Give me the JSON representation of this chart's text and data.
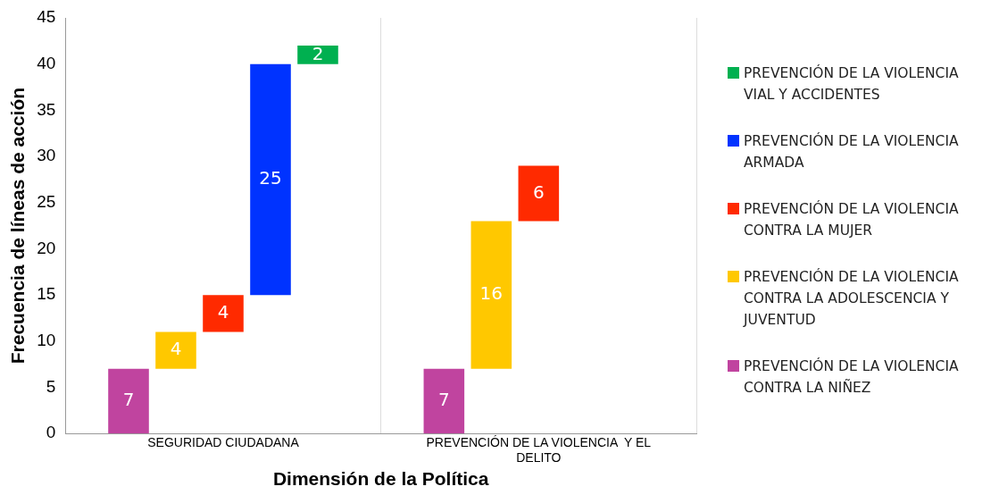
{
  "chart_data": {
    "type": "bar",
    "xlabel": "Dimensión de la Política",
    "ylabel": "Frecuencia de líneas de acción",
    "categories": [
      "SEGURIDAD CIUDADANA",
      "PREVENCIÓN DE LA VIOLENCIA  Y EL DELITO"
    ],
    "series": [
      {
        "name": "PREVENCIÓN DE LA VIOLENCIA CONTRA LA NIÑEZ",
        "color": "#c0449f",
        "values": [
          7,
          7
        ],
        "base": [
          0,
          0
        ]
      },
      {
        "name": "PREVENCIÓN DE LA VIOLENCIA CONTRA LA ADOLESCENCIA Y JUVENTUD",
        "color": "#ffc800",
        "values": [
          4,
          16
        ],
        "base": [
          7,
          7
        ]
      },
      {
        "name": "PREVENCIÓN DE LA VIOLENCIA CONTRA LA MUJER",
        "color": "#ff2a00",
        "values": [
          4,
          6
        ],
        "base": [
          11,
          23
        ]
      },
      {
        "name": "PREVENCIÓN DE LA VIOLENCIA ARMADA",
        "color": "#0033ff",
        "values": [
          25,
          null
        ],
        "base": [
          15,
          null
        ]
      },
      {
        "name": "PREVENCIÓN DE LA VIOLENCIA VIAL Y ACCIDENTES",
        "color": "#00b050",
        "values": [
          2,
          null
        ],
        "base": [
          40,
          null
        ]
      }
    ],
    "ylim": [
      0,
      45
    ],
    "yticks": [
      0,
      5,
      10,
      15,
      20,
      25,
      30,
      35,
      40,
      45
    ],
    "grid": "x",
    "legend": "right",
    "data_labels": true
  }
}
